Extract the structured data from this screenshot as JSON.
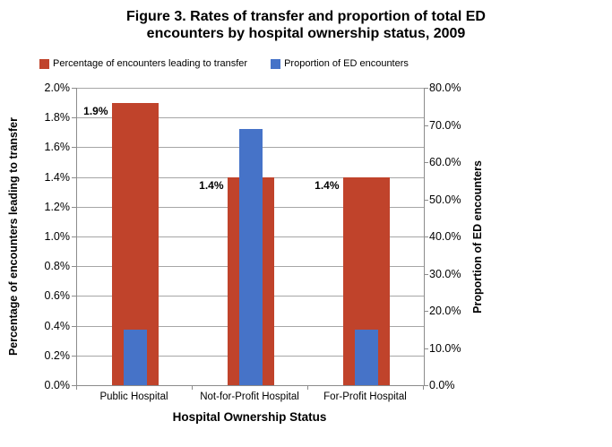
{
  "chart_data": {
    "type": "bar",
    "title": "Figure 3. Rates of transfer and proportion of total ED encounters by hospital ownership status, 2009",
    "title_lines": [
      "Figure 3. Rates of transfer and proportion of total ED",
      "encounters by hospital ownership status, 2009"
    ],
    "categories": [
      "Public Hospital",
      "Not-for-Profit Hospital",
      "For-Profit Hospital"
    ],
    "series": [
      {
        "name": "Percentage of encounters leading to transfer",
        "axis": "left",
        "color": "#C0432B",
        "values": [
          1.9,
          1.4,
          1.4
        ],
        "data_labels": [
          "1.9%",
          "1.4%",
          "1.4%"
        ]
      },
      {
        "name": "Proportion of ED encounters",
        "axis": "right",
        "color": "#4673C8",
        "values": [
          15,
          69,
          15
        ]
      }
    ],
    "xlabel": "Hospital Ownership Status",
    "left_axis": {
      "title": "Percentage of encounters leading to transfer",
      "min": 0,
      "max": 2.0,
      "step": 0.2,
      "ticks": [
        "2.0%",
        "1.8%",
        "1.6%",
        "1.4%",
        "1.2%",
        "1.0%",
        "0.8%",
        "0.6%",
        "0.4%",
        "0.2%",
        "0.0%"
      ]
    },
    "right_axis": {
      "title": "Proportion of ED encounters",
      "min": 0,
      "max": 80,
      "step": 10,
      "ticks": [
        "80.0%",
        "70.0%",
        "60.0%",
        "50.0%",
        "40.0%",
        "30.0%",
        "20.0%",
        "10.0%",
        "0.0%"
      ]
    },
    "grid": true,
    "legend_position": "top",
    "colors": {
      "gridline": "#A6A6A6",
      "axis_line": "#8C8C8C",
      "background": "#FFFFFF"
    }
  }
}
